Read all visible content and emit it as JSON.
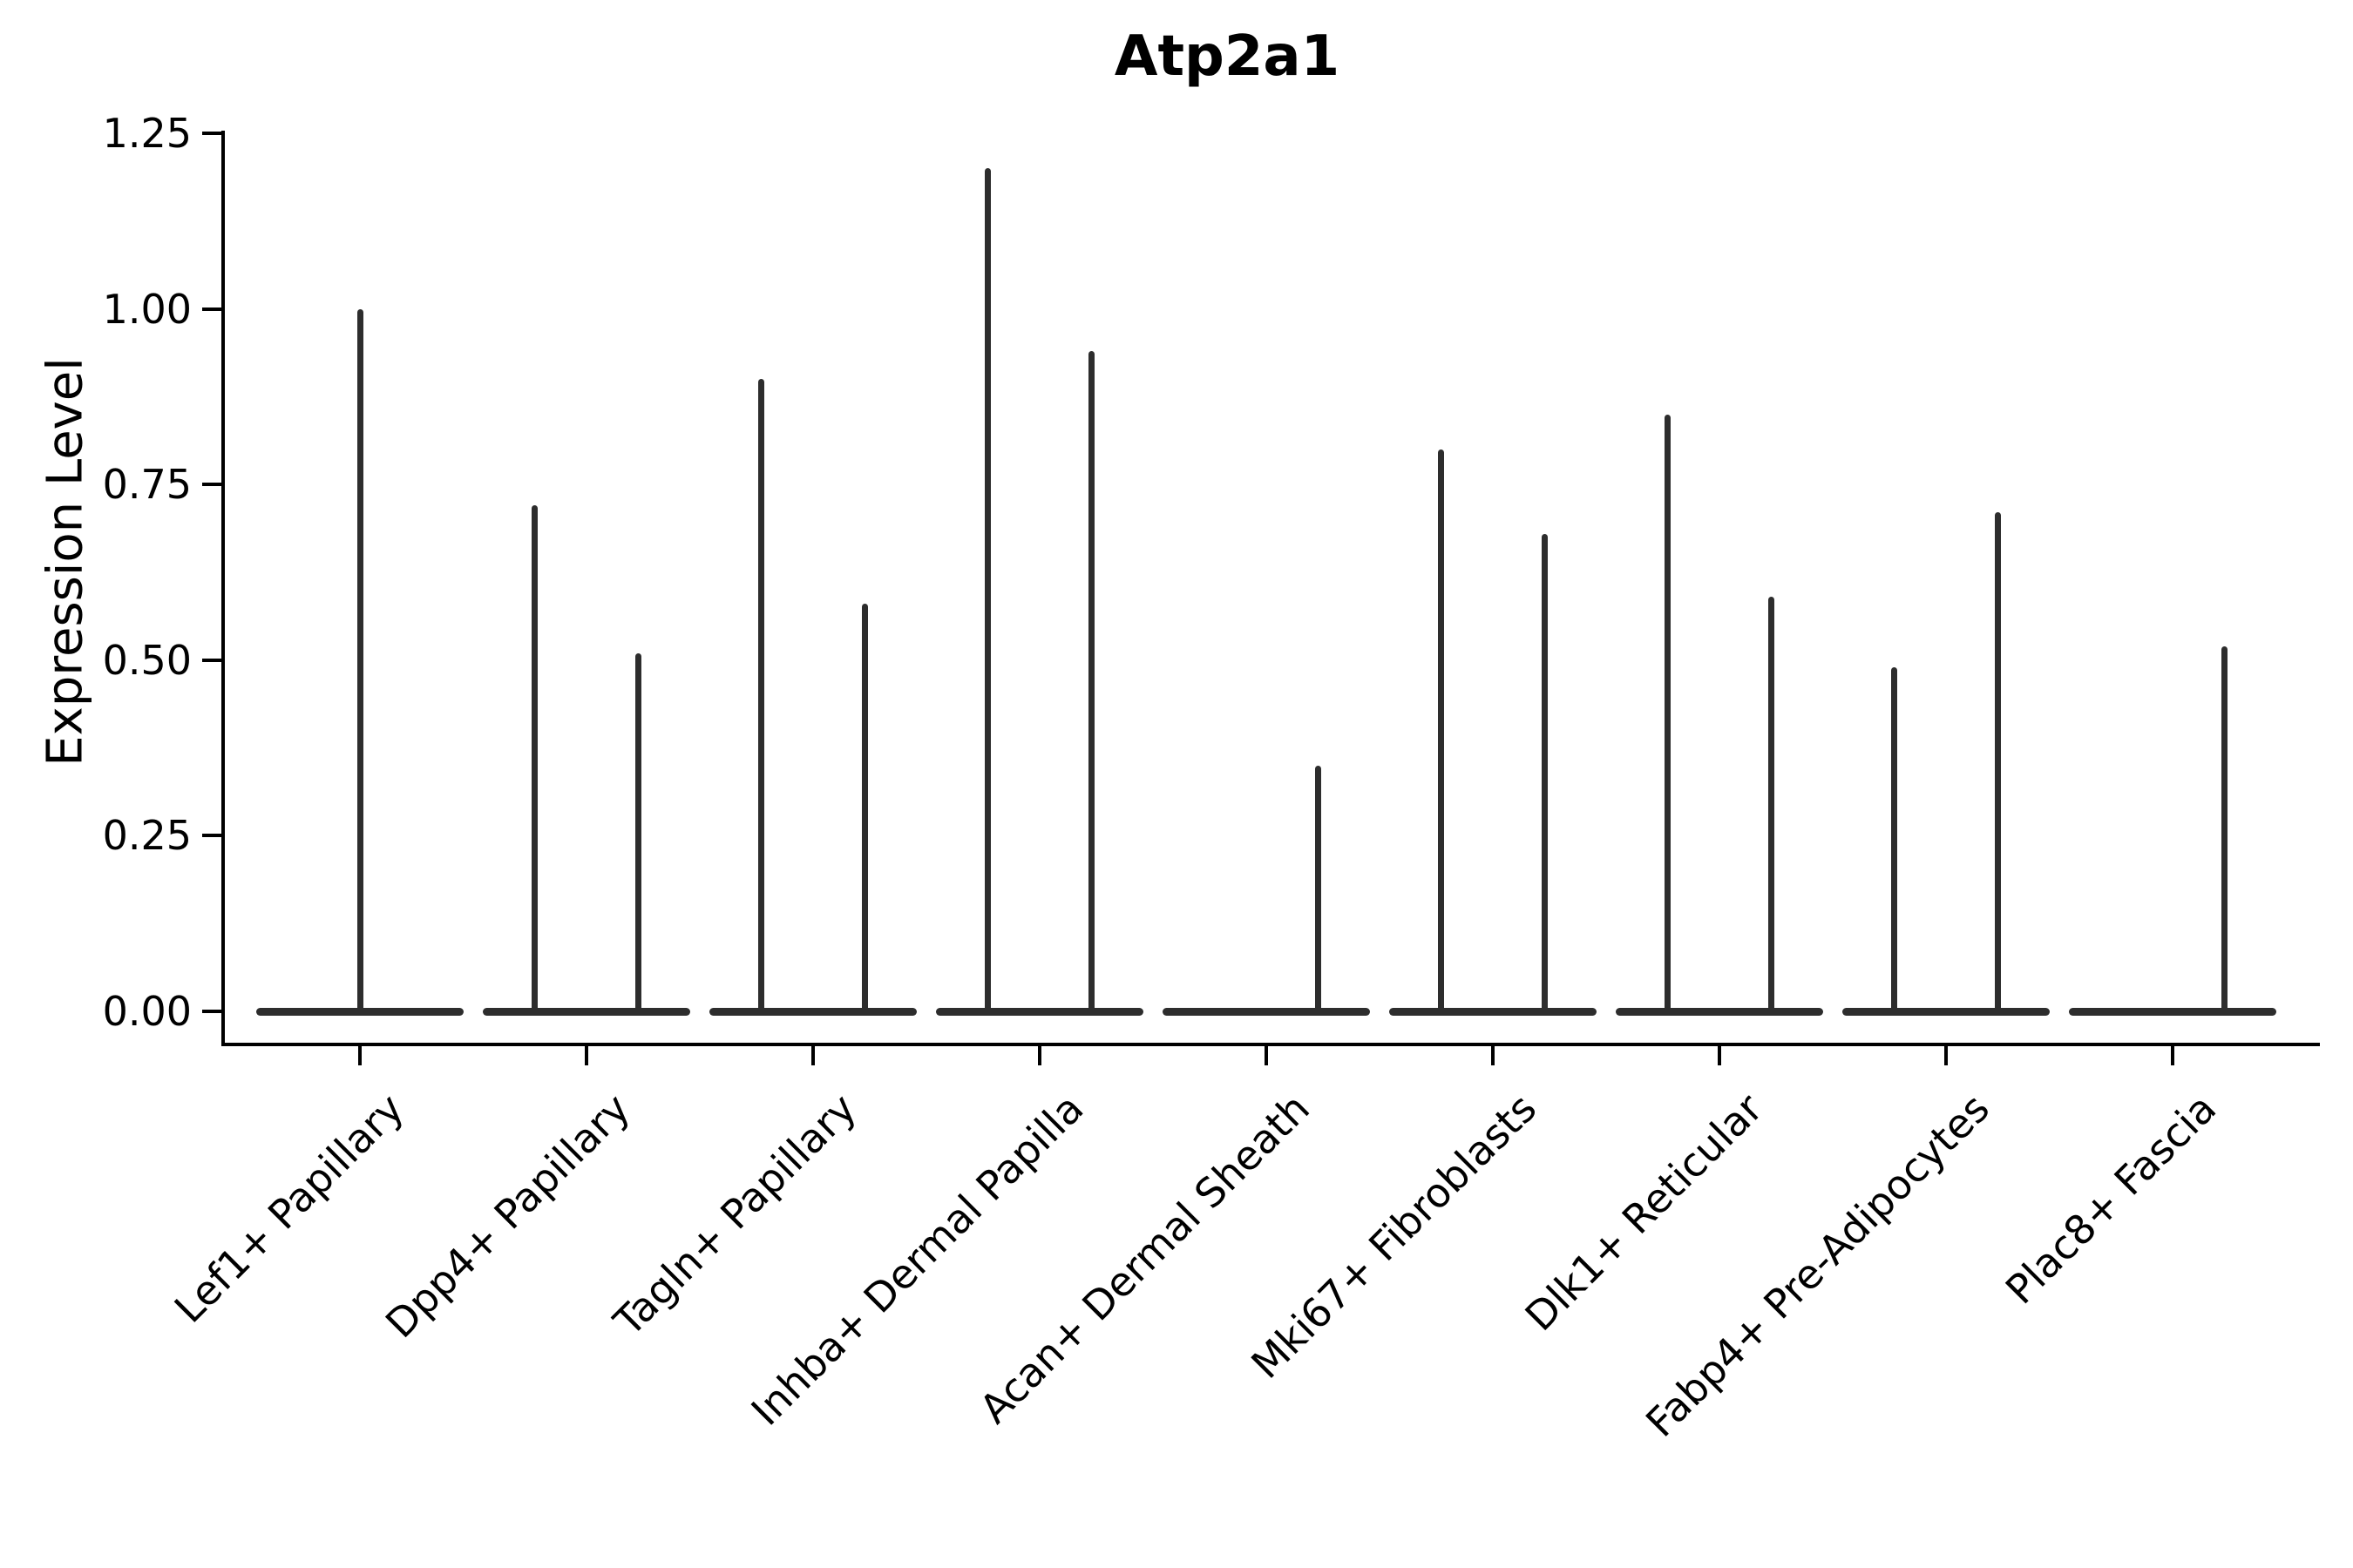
{
  "chart_data": {
    "type": "violin",
    "title": "Atp2a1",
    "ylabel": "Expression Level",
    "xlabel": "",
    "ylim": [
      0,
      1.25
    ],
    "grid": false,
    "legend_position": "none",
    "line_color": "#2d2d2d",
    "axis_color": "#000000",
    "yticks": [
      {
        "label": "0.00",
        "value": 0.0
      },
      {
        "label": "0.25",
        "value": 0.25
      },
      {
        "label": "0.50",
        "value": 0.5
      },
      {
        "label": "0.75",
        "value": 0.75
      },
      {
        "label": "1.00",
        "value": 1.0
      },
      {
        "label": "1.25",
        "value": 1.25
      }
    ],
    "categories": [
      {
        "label": "Lef1+ Papillary",
        "violins": [
          {
            "position": "center",
            "peak": 1.0
          }
        ]
      },
      {
        "label": "Dpp4+ Papillary",
        "violins": [
          {
            "position": "left",
            "peak": 0.72
          },
          {
            "position": "right",
            "peak": 0.51
          }
        ]
      },
      {
        "label": "Tagln+ Papillary",
        "violins": [
          {
            "position": "left",
            "peak": 0.9
          },
          {
            "position": "right",
            "peak": 0.58
          }
        ]
      },
      {
        "label": "Inhba+ Dermal Papilla",
        "violins": [
          {
            "position": "left",
            "peak": 1.2
          },
          {
            "position": "right",
            "peak": 0.94
          }
        ]
      },
      {
        "label": "Acan+ Dermal Sheath",
        "violins": [
          {
            "position": "right",
            "peak": 0.35
          }
        ]
      },
      {
        "label": "Mki67+ Fibroblasts",
        "violins": [
          {
            "position": "left",
            "peak": 0.8
          },
          {
            "position": "right",
            "peak": 0.68
          }
        ]
      },
      {
        "label": "Dlk1+ Reticular",
        "violins": [
          {
            "position": "left",
            "peak": 0.85
          },
          {
            "position": "right",
            "peak": 0.59
          }
        ]
      },
      {
        "label": "Fabp4+ Pre-Adipocytes",
        "violins": [
          {
            "position": "left",
            "peak": 0.49
          },
          {
            "position": "right",
            "peak": 0.71
          }
        ]
      },
      {
        "label": "Plac8+ Fascia",
        "violins": [
          {
            "position": "right",
            "peak": 0.52
          }
        ]
      }
    ]
  }
}
